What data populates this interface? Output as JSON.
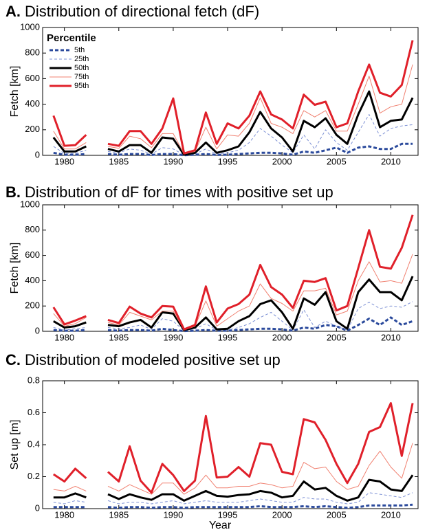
{
  "chart_data": [
    {
      "type": "line",
      "label": "A.",
      "title": "Distribution of directional fetch (dF)",
      "ylabel": "Fetch [km]",
      "legend_title": "Percentile",
      "legend": "upper left",
      "x": [
        1979,
        1980,
        1981,
        1982,
        1983,
        1984,
        1985,
        1986,
        1987,
        1988,
        1989,
        1990,
        1991,
        1992,
        1993,
        1994,
        1995,
        1996,
        1997,
        1998,
        1999,
        2000,
        2001,
        2002,
        2003,
        2004,
        2005,
        2006,
        2007,
        2008,
        2009,
        2010,
        2011,
        2012
      ],
      "xlim": [
        1978,
        2012.5
      ],
      "xticks": [
        1980,
        1985,
        1990,
        1995,
        2000,
        2005,
        2010
      ],
      "ylim": [
        0,
        1000
      ],
      "yticks": [
        0,
        200,
        400,
        600,
        800,
        1000
      ],
      "series": [
        {
          "name": "5th",
          "color": "#2b4a9c",
          "linestyle": "dashed",
          "linewidth": 3,
          "values": [
            20,
            5,
            5,
            10,
            null,
            10,
            5,
            10,
            10,
            3,
            10,
            10,
            1,
            5,
            10,
            3,
            5,
            10,
            15,
            20,
            20,
            15,
            5,
            30,
            20,
            40,
            60,
            20,
            60,
            70,
            50,
            50,
            90,
            90
          ]
        },
        {
          "name": "25th",
          "color": "#7b8fd4",
          "linestyle": "dashed",
          "linewidth": 1,
          "values": [
            70,
            15,
            15,
            40,
            null,
            30,
            20,
            50,
            40,
            10,
            60,
            50,
            3,
            10,
            50,
            10,
            20,
            40,
            100,
            210,
            150,
            80,
            20,
            160,
            50,
            200,
            100,
            40,
            180,
            320,
            150,
            210,
            230,
            240
          ]
        },
        {
          "name": "50th",
          "color": "#000000",
          "linestyle": "solid",
          "linewidth": 3,
          "values": [
            140,
            30,
            30,
            70,
            null,
            50,
            30,
            80,
            80,
            20,
            140,
            130,
            5,
            20,
            100,
            20,
            40,
            70,
            180,
            340,
            210,
            140,
            30,
            270,
            220,
            290,
            160,
            90,
            320,
            500,
            220,
            270,
            280,
            450
          ]
        },
        {
          "name": "75th",
          "color": "#f08070",
          "linestyle": "solid",
          "linewidth": 1,
          "values": [
            190,
            50,
            50,
            100,
            null,
            70,
            55,
            150,
            130,
            60,
            170,
            170,
            10,
            30,
            220,
            50,
            160,
            150,
            250,
            450,
            250,
            220,
            170,
            350,
            300,
            350,
            190,
            190,
            400,
            620,
            330,
            380,
            400,
            710
          ]
        },
        {
          "name": "95th",
          "color": "#e0202a",
          "linestyle": "solid",
          "linewidth": 3,
          "values": [
            310,
            75,
            80,
            160,
            null,
            90,
            75,
            190,
            190,
            90,
            210,
            445,
            15,
            40,
            335,
            90,
            250,
            210,
            310,
            500,
            320,
            280,
            210,
            475,
            395,
            420,
            220,
            250,
            500,
            710,
            490,
            460,
            550,
            900
          ]
        }
      ]
    },
    {
      "type": "line",
      "label": "B.",
      "title": "Distribution of dF for times with positive set up",
      "ylabel": "Fetch [km]",
      "x": [
        1979,
        1980,
        1981,
        1982,
        1983,
        1984,
        1985,
        1986,
        1987,
        1988,
        1989,
        1990,
        1991,
        1992,
        1993,
        1994,
        1995,
        1996,
        1997,
        1998,
        1999,
        2000,
        2001,
        2002,
        2003,
        2004,
        2005,
        2006,
        2007,
        2008,
        2009,
        2010,
        2011,
        2012
      ],
      "xlim": [
        1978,
        2012.5
      ],
      "xticks": [
        1980,
        1985,
        1990,
        1995,
        2000,
        2005,
        2010
      ],
      "ylim": [
        0,
        1000
      ],
      "yticks": [
        0,
        200,
        400,
        600,
        800,
        1000
      ],
      "series": [
        {
          "color": "#2b4a9c",
          "linestyle": "dashed",
          "linewidth": 3,
          "values": [
            10,
            5,
            5,
            10,
            null,
            10,
            5,
            10,
            10,
            5,
            20,
            10,
            2,
            5,
            10,
            5,
            5,
            10,
            15,
            20,
            20,
            15,
            5,
            30,
            20,
            50,
            40,
            5,
            50,
            100,
            50,
            110,
            50,
            80
          ]
        },
        {
          "color": "#7b8fd4",
          "linestyle": "dashed",
          "linewidth": 1,
          "values": [
            30,
            10,
            20,
            30,
            null,
            30,
            20,
            30,
            50,
            15,
            100,
            80,
            5,
            20,
            60,
            10,
            10,
            30,
            60,
            110,
            150,
            80,
            10,
            170,
            30,
            80,
            40,
            10,
            180,
            230,
            180,
            200,
            190,
            235
          ]
        },
        {
          "color": "#000000",
          "linestyle": "solid",
          "linewidth": 3,
          "values": [
            80,
            30,
            40,
            70,
            null,
            50,
            40,
            70,
            90,
            30,
            150,
            140,
            10,
            30,
            110,
            15,
            20,
            80,
            120,
            215,
            245,
            150,
            20,
            260,
            210,
            310,
            80,
            20,
            310,
            410,
            310,
            310,
            245,
            435
          ]
        },
        {
          "color": "#f08070",
          "linestyle": "solid",
          "linewidth": 1,
          "values": [
            140,
            40,
            60,
            110,
            null,
            70,
            50,
            150,
            120,
            90,
            160,
            160,
            10,
            40,
            240,
            40,
            100,
            160,
            200,
            375,
            260,
            220,
            160,
            320,
            320,
            340,
            130,
            160,
            400,
            550,
            390,
            400,
            380,
            610
          ]
        },
        {
          "color": "#e0202a",
          "linestyle": "solid",
          "linewidth": 3,
          "values": [
            190,
            55,
            85,
            120,
            null,
            90,
            65,
            195,
            140,
            110,
            200,
            195,
            15,
            50,
            355,
            70,
            180,
            215,
            290,
            525,
            350,
            290,
            185,
            400,
            390,
            420,
            165,
            200,
            500,
            800,
            510,
            495,
            660,
            920
          ]
        }
      ]
    },
    {
      "type": "line",
      "label": "C.",
      "title": "Distribution of modeled positive set up",
      "ylabel": "Set up [m]",
      "xlabel": "Year",
      "x": [
        1979,
        1980,
        1981,
        1982,
        1983,
        1984,
        1985,
        1986,
        1987,
        1988,
        1989,
        1990,
        1991,
        1992,
        1993,
        1994,
        1995,
        1996,
        1997,
        1998,
        1999,
        2000,
        2001,
        2002,
        2003,
        2004,
        2005,
        2006,
        2007,
        2008,
        2009,
        2010,
        2011,
        2012
      ],
      "xlim": [
        1978,
        2012.5
      ],
      "xticks": [
        1980,
        1985,
        1990,
        1995,
        2000,
        2005,
        2010
      ],
      "ylim": [
        0,
        0.8
      ],
      "yticks": [
        0,
        0.2,
        0.4,
        0.6,
        0.8
      ],
      "series": [
        {
          "color": "#2b4a9c",
          "linestyle": "dashed",
          "linewidth": 3,
          "values": [
            0.01,
            0.01,
            0.01,
            0.01,
            null,
            0.01,
            0.005,
            0.01,
            0.01,
            0.005,
            0.01,
            0.01,
            0.005,
            0.01,
            0.01,
            0.01,
            0.01,
            0.01,
            0.01,
            0.015,
            0.01,
            0.01,
            0.01,
            0.015,
            0.01,
            0.015,
            0.01,
            0.005,
            0.01,
            0.02,
            0.02,
            0.02,
            0.02,
            0.025
          ]
        },
        {
          "color": "#7b8fd4",
          "linestyle": "dashed",
          "linewidth": 1,
          "values": [
            0.04,
            0.03,
            0.05,
            0.04,
            null,
            0.05,
            0.03,
            0.04,
            0.04,
            0.03,
            0.04,
            0.05,
            0.03,
            0.04,
            0.05,
            0.04,
            0.04,
            0.04,
            0.05,
            0.06,
            0.05,
            0.04,
            0.04,
            0.07,
            0.06,
            0.06,
            0.04,
            0.03,
            0.04,
            0.1,
            0.09,
            0.08,
            0.07,
            0.1
          ]
        },
        {
          "color": "#000000",
          "linestyle": "solid",
          "linewidth": 3,
          "values": [
            0.07,
            0.07,
            0.095,
            0.07,
            null,
            0.09,
            0.06,
            0.09,
            0.07,
            0.055,
            0.09,
            0.09,
            0.05,
            0.08,
            0.11,
            0.08,
            0.075,
            0.085,
            0.09,
            0.11,
            0.1,
            0.07,
            0.08,
            0.17,
            0.12,
            0.13,
            0.08,
            0.05,
            0.07,
            0.18,
            0.17,
            0.12,
            0.11,
            0.21
          ]
        },
        {
          "color": "#f08070",
          "linestyle": "solid",
          "linewidth": 1,
          "values": [
            0.12,
            0.11,
            0.14,
            0.11,
            null,
            0.14,
            0.11,
            0.15,
            0.12,
            0.09,
            0.16,
            0.16,
            0.09,
            0.13,
            0.21,
            0.13,
            0.13,
            0.14,
            0.14,
            0.16,
            0.15,
            0.13,
            0.14,
            0.29,
            0.25,
            0.26,
            0.17,
            0.12,
            0.14,
            0.27,
            0.36,
            0.26,
            0.19,
            0.41
          ]
        },
        {
          "color": "#e0202a",
          "linestyle": "solid",
          "linewidth": 3,
          "values": [
            0.215,
            0.17,
            0.25,
            0.19,
            null,
            0.23,
            0.17,
            0.39,
            0.175,
            0.1,
            0.28,
            0.21,
            0.11,
            0.175,
            0.58,
            0.195,
            0.2,
            0.26,
            0.2,
            0.41,
            0.4,
            0.23,
            0.215,
            0.56,
            0.54,
            0.43,
            0.28,
            0.16,
            0.28,
            0.48,
            0.51,
            0.66,
            0.33,
            0.66
          ]
        }
      ]
    }
  ]
}
